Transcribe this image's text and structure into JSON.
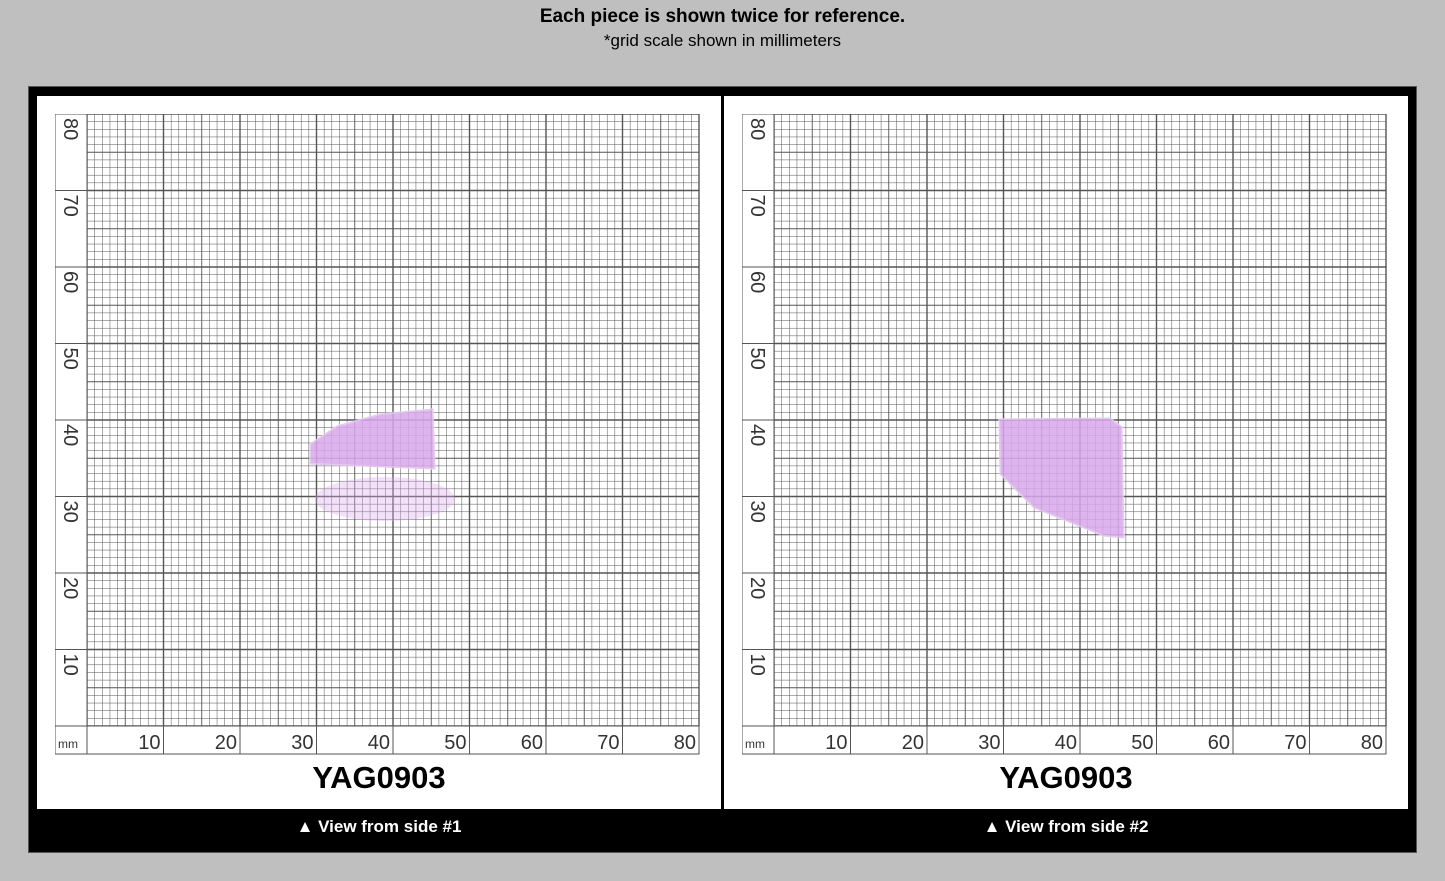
{
  "header": {
    "title": "Each piece is shown twice for reference.",
    "subtitle": "*grid scale shown in millimeters"
  },
  "grid": {
    "unit_label": "mm",
    "x_ticks": [
      "10",
      "20",
      "30",
      "40",
      "50",
      "60",
      "70",
      "80"
    ],
    "y_ticks": [
      "10",
      "20",
      "30",
      "40",
      "50",
      "60",
      "70",
      "80"
    ],
    "line_color": "#555555"
  },
  "panels": [
    {
      "code": "YAG0903",
      "caption": "▲ View from side #1",
      "piece_color": "#d9a8ec"
    },
    {
      "code": "YAG0903",
      "caption": "▲ View from side #2",
      "piece_color": "#d9a8ec"
    }
  ]
}
